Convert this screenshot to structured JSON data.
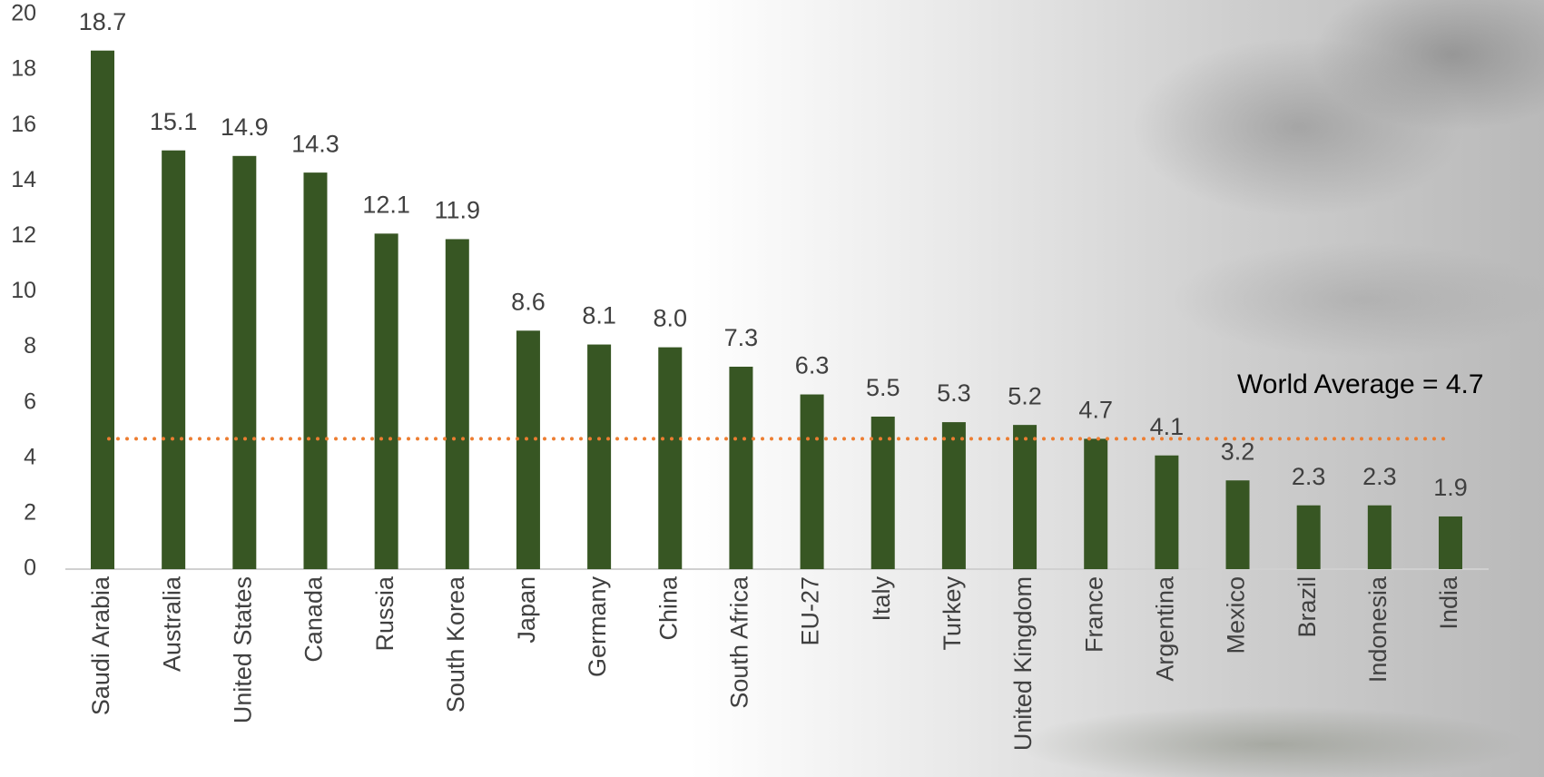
{
  "chart_data": {
    "type": "bar",
    "categories": [
      "Saudi Arabia",
      "Australia",
      "United States",
      "Canada",
      "Russia",
      "South Korea",
      "Japan",
      "Germany",
      "China",
      "South Africa",
      "EU-27",
      "Italy",
      "Turkey",
      "United Kingdom",
      "France",
      "Argentina",
      "Mexico",
      "Brazil",
      "Indonesia",
      "India"
    ],
    "values": [
      18.7,
      15.1,
      14.9,
      14.3,
      12.1,
      11.9,
      8.6,
      8.1,
      8.0,
      7.3,
      6.3,
      5.5,
      5.3,
      5.2,
      4.7,
      4.1,
      3.2,
      2.3,
      2.3,
      1.9
    ],
    "value_labels": [
      "18.7",
      "15.1",
      "14.9",
      "14.3",
      "12.1",
      "11.9",
      "8.6",
      "8.1",
      "8.0",
      "7.3",
      "6.3",
      "5.5",
      "5.3",
      "5.2",
      "4.7",
      "4.1",
      "3.2",
      "2.3",
      "2.3",
      "1.9"
    ],
    "color": "#375623",
    "ylim": [
      0,
      20
    ],
    "yticks": [
      0,
      2,
      4,
      6,
      8,
      10,
      12,
      14,
      16,
      18,
      20
    ],
    "reference_line": {
      "value": 4.7,
      "label": "World Average = 4.7",
      "color": "#ed7d31"
    }
  }
}
